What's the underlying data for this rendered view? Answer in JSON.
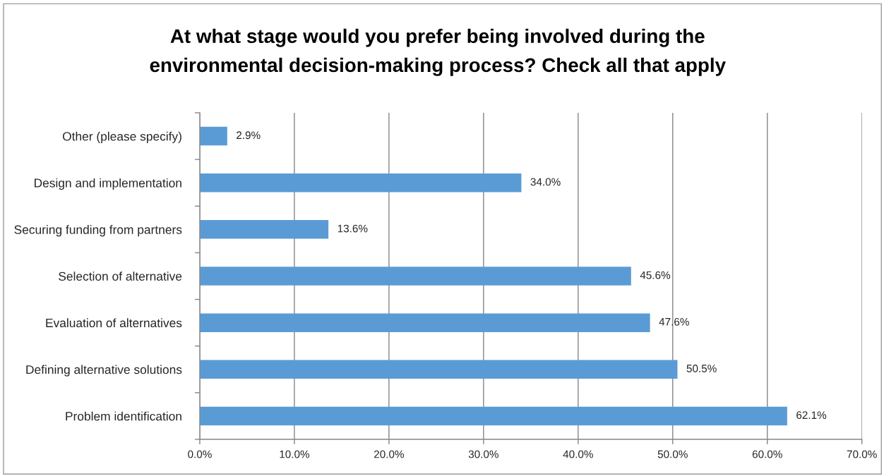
{
  "chart_data": {
    "type": "bar",
    "orientation": "horizontal",
    "title": "At what stage would you prefer being involved during the\nenvironmental decision-making process? Check all that apply",
    "categories": [
      "Other (please specify)",
      "Design and implementation",
      "Securing funding from partners",
      "Selection of alternative",
      "Evaluation of alternatives",
      "Defining alternative solutions",
      "Problem identification"
    ],
    "values": [
      2.9,
      34.0,
      13.6,
      45.6,
      47.6,
      50.5,
      62.1
    ],
    "value_labels": [
      "2.9%",
      "34.0%",
      "13.6%",
      "45.6%",
      "47.6%",
      "50.5%",
      "62.1%"
    ],
    "color": "#5b9bd5",
    "xlim": [
      0,
      70
    ],
    "xticks": [
      {
        "value": 0,
        "label": "0.0%"
      },
      {
        "value": 10,
        "label": "10.0%"
      },
      {
        "value": 20,
        "label": "20.0%"
      },
      {
        "value": 30,
        "label": "30.0%"
      },
      {
        "value": 40,
        "label": "40.0%"
      },
      {
        "value": 50,
        "label": "50.0%"
      },
      {
        "value": 60,
        "label": "60.0%"
      },
      {
        "value": 70,
        "label": "70.0%"
      }
    ],
    "grid": "x"
  }
}
